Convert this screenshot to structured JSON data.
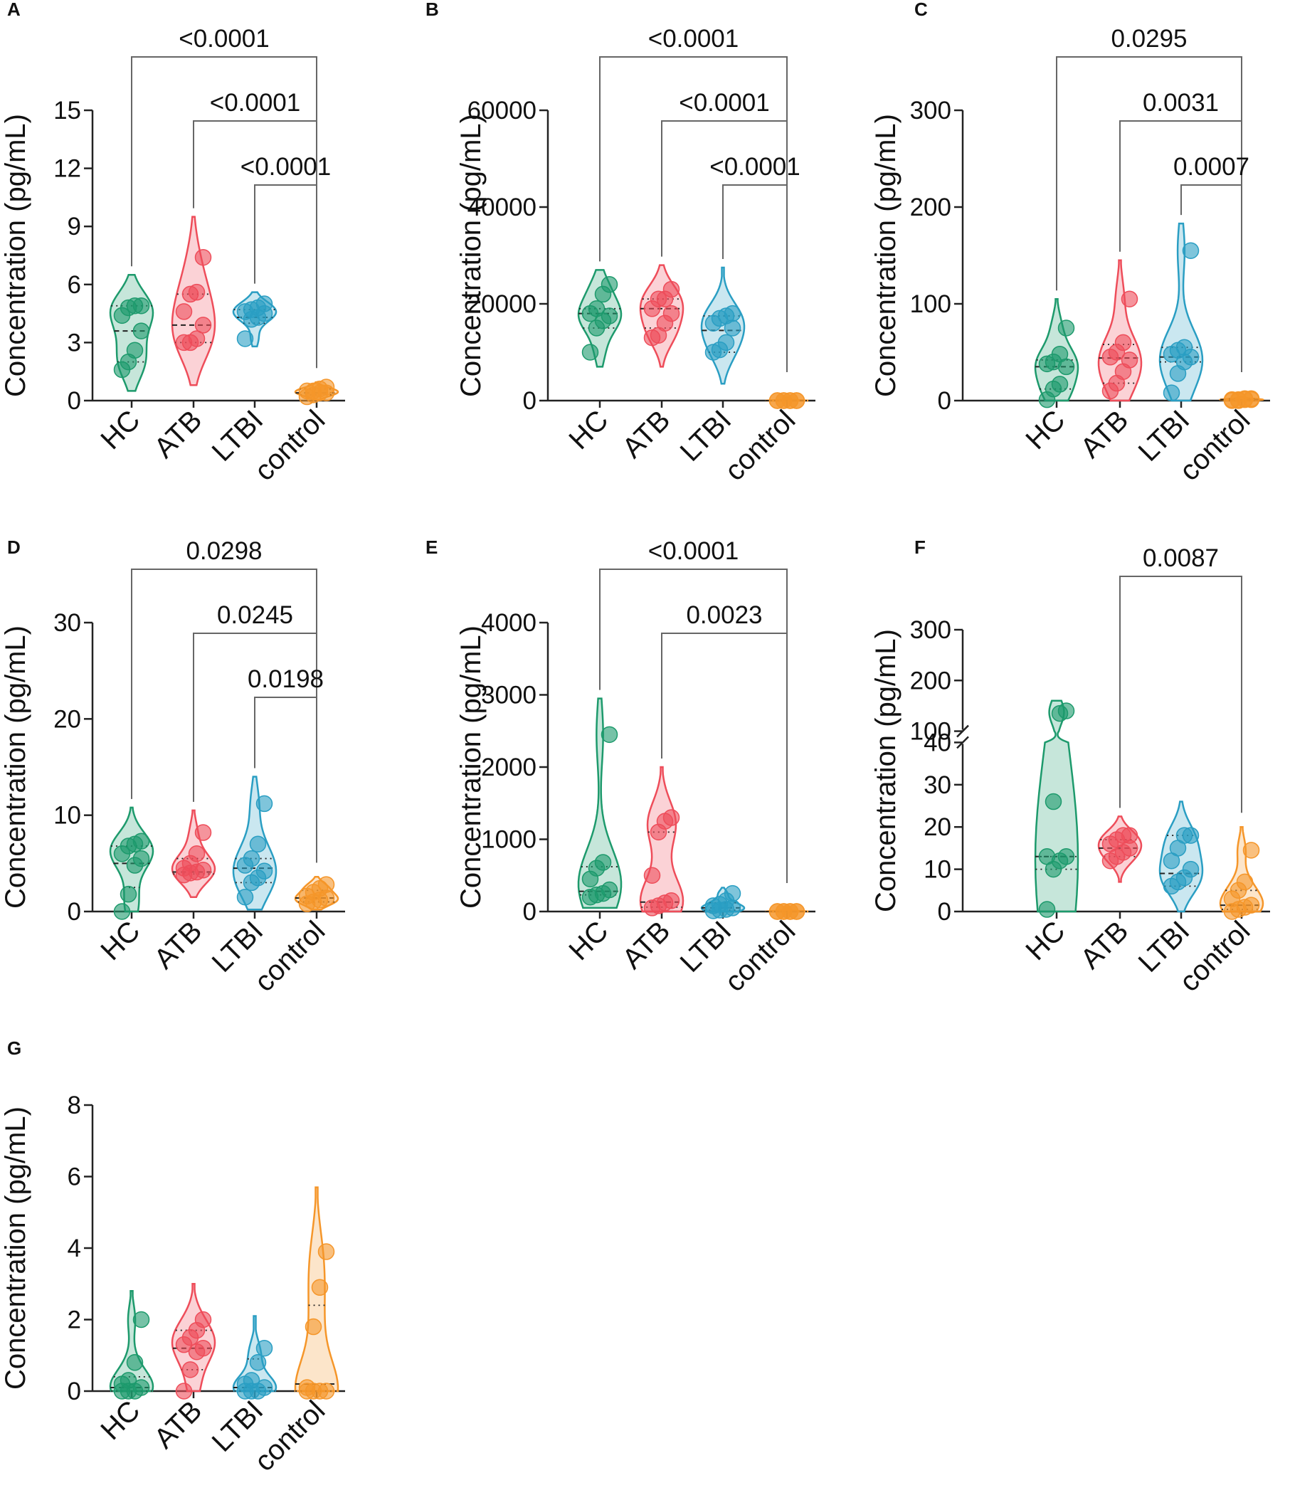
{
  "colors": {
    "HC": "#1d9a6c",
    "ATB": "#ee4d5a",
    "LTBI": "#2a9ec3",
    "control": "#f5962a"
  },
  "chart_data": [
    {
      "type": "violin",
      "panel": "A",
      "title": "",
      "ylabel": "Concentration (pg/mL)",
      "ylim": [
        0,
        15
      ],
      "yticks": [
        0,
        3,
        6,
        9,
        12,
        15
      ],
      "categories": [
        "HC",
        "ATB",
        "LTBI",
        "control"
      ],
      "series": [
        {
          "name": "HC",
          "values": [
            1.6,
            2.0,
            2.6,
            3.6,
            4.4,
            4.8,
            4.9,
            4.9
          ],
          "median": 3.6,
          "q1": 2.0,
          "q3": 4.9,
          "range": [
            0.5,
            6.5
          ]
        },
        {
          "name": "ATB",
          "values": [
            3.0,
            3.0,
            3.2,
            3.9,
            4.6,
            5.5,
            5.6,
            7.4
          ],
          "median": 3.9,
          "q1": 3.0,
          "q3": 5.5,
          "range": [
            0.8,
            9.5
          ]
        },
        {
          "name": "LTBI",
          "values": [
            3.2,
            4.2,
            4.3,
            4.5,
            4.6,
            4.7,
            4.8,
            5.0
          ],
          "median": 4.3,
          "q1": 4.0,
          "q3": 4.7,
          "range": [
            2.8,
            5.6
          ]
        },
        {
          "name": "control",
          "values": [
            0.2,
            0.3,
            0.4,
            0.4,
            0.5,
            0.5,
            0.6,
            0.7
          ],
          "median": 0.4,
          "q1": 0.3,
          "q3": 0.6,
          "range": [
            0.05,
            0.95
          ]
        }
      ],
      "comparisons": [
        {
          "from": "HC",
          "to": "control",
          "label": "<0.0001"
        },
        {
          "from": "ATB",
          "to": "control",
          "label": "<0.0001"
        },
        {
          "from": "LTBI",
          "to": "control",
          "label": "<0.0001"
        }
      ]
    },
    {
      "type": "violin",
      "panel": "B",
      "title": "",
      "ylabel": "Concentration (pg/mL)",
      "ylim": [
        0,
        60000
      ],
      "yticks": [
        0,
        20000,
        40000,
        60000
      ],
      "categories": [
        "HC",
        "ATB",
        "LTBI",
        "control"
      ],
      "series": [
        {
          "name": "HC",
          "values": [
            10000,
            15000,
            16500,
            17500,
            18000,
            19000,
            22000,
            24000
          ],
          "median": 18000,
          "q1": 15000,
          "q3": 19000,
          "range": [
            7000,
            27000
          ]
        },
        {
          "name": "ATB",
          "values": [
            13000,
            13500,
            16000,
            18000,
            19000,
            21000,
            21000,
            23000
          ],
          "median": 19000,
          "q1": 15000,
          "q3": 21000,
          "range": [
            7000,
            28000
          ]
        },
        {
          "name": "LTBI",
          "values": [
            10000,
            10500,
            12000,
            15000,
            16000,
            17000,
            17500,
            18000
          ],
          "median": 14500,
          "q1": 10000,
          "q3": 17500,
          "range": [
            3500,
            27500
          ]
        },
        {
          "name": "control",
          "values": [
            0,
            0,
            0,
            0,
            0,
            0,
            0,
            0
          ],
          "median": 0,
          "q1": 0,
          "q3": 0,
          "range": [
            0,
            700
          ]
        }
      ],
      "comparisons": [
        {
          "from": "HC",
          "to": "control",
          "label": "<0.0001"
        },
        {
          "from": "ATB",
          "to": "control",
          "label": "<0.0001"
        },
        {
          "from": "LTBI",
          "to": "control",
          "label": "<0.0001"
        }
      ]
    },
    {
      "type": "violin",
      "panel": "C",
      "title": "",
      "ylabel": "Concentration (pg/mL)",
      "ylim": [
        0,
        300
      ],
      "yticks": [
        0,
        100,
        200,
        300
      ],
      "categories": [
        "HC",
        "ATB",
        "LTBI",
        "control"
      ],
      "series": [
        {
          "name": "HC",
          "values": [
            1,
            12,
            17,
            35,
            38,
            40,
            48,
            75
          ],
          "median": 35,
          "q1": 12,
          "q3": 42,
          "range": [
            0,
            105
          ]
        },
        {
          "name": "ATB",
          "values": [
            10,
            18,
            30,
            42,
            45,
            50,
            60,
            105
          ],
          "median": 44,
          "q1": 18,
          "q3": 58,
          "range": [
            0,
            145
          ]
        },
        {
          "name": "LTBI",
          "values": [
            8,
            28,
            40,
            45,
            48,
            52,
            55,
            155
          ],
          "median": 45,
          "q1": 40,
          "q3": 55,
          "range": [
            0,
            183
          ]
        },
        {
          "name": "control",
          "values": [
            0,
            0,
            1,
            1,
            1,
            1,
            2,
            2
          ],
          "median": 1,
          "q1": 0,
          "q3": 2,
          "range": [
            0,
            4
          ]
        }
      ],
      "comparisons": [
        {
          "from": "HC",
          "to": "control",
          "label": "0.0295"
        },
        {
          "from": "ATB",
          "to": "control",
          "label": "0.0031"
        },
        {
          "from": "LTBI",
          "to": "control",
          "label": "0.0007"
        }
      ]
    },
    {
      "type": "violin",
      "panel": "D",
      "title": "",
      "ylabel": "Concentration (pg/mL)",
      "ylim": [
        0,
        30
      ],
      "yticks": [
        0,
        10,
        20,
        30
      ],
      "categories": [
        "HC",
        "ATB",
        "LTBI",
        "control"
      ],
      "series": [
        {
          "name": "HC",
          "values": [
            0,
            1.8,
            4.8,
            5.5,
            6.0,
            6.8,
            7.0,
            7.3
          ],
          "median": 5.0,
          "q1": 2.5,
          "q3": 6.8,
          "range": [
            0,
            10.8
          ]
        },
        {
          "name": "ATB",
          "values": [
            3.8,
            4.0,
            4.1,
            4.3,
            4.5,
            5.0,
            6.0,
            8.2
          ],
          "median": 4.1,
          "q1": 3.9,
          "q3": 5.5,
          "range": [
            1.5,
            10.5
          ]
        },
        {
          "name": "LTBI",
          "values": [
            1.5,
            3.0,
            3.5,
            4.2,
            4.8,
            5.5,
            7.0,
            11.2
          ],
          "median": 4.5,
          "q1": 3.0,
          "q3": 5.5,
          "range": [
            0.2,
            14
          ]
        },
        {
          "name": "control",
          "values": [
            0.8,
            1.0,
            1.2,
            1.4,
            1.6,
            2.0,
            2.4,
            2.8
          ],
          "median": 1.4,
          "q1": 1.0,
          "q3": 2.2,
          "range": [
            0.2,
            3.6
          ]
        }
      ],
      "comparisons": [
        {
          "from": "HC",
          "to": "control",
          "label": "0.0298"
        },
        {
          "from": "ATB",
          "to": "control",
          "label": "0.0245"
        },
        {
          "from": "LTBI",
          "to": "control",
          "label": "0.0198"
        }
      ]
    },
    {
      "type": "violin",
      "panel": "E",
      "title": "",
      "ylabel": "Concentration (pg/mL)",
      "ylim": [
        0,
        4000
      ],
      "yticks": [
        0,
        1000,
        2000,
        3000,
        4000
      ],
      "categories": [
        "HC",
        "ATB",
        "LTBI",
        "control"
      ],
      "series": [
        {
          "name": "HC",
          "values": [
            200,
            230,
            250,
            300,
            450,
            600,
            680,
            2450
          ],
          "median": 280,
          "q1": 230,
          "q3": 620,
          "range": [
            50,
            2950
          ]
        },
        {
          "name": "ATB",
          "values": [
            50,
            80,
            120,
            150,
            500,
            1100,
            1250,
            1300
          ],
          "median": 130,
          "q1": 60,
          "q3": 1100,
          "range": [
            0,
            2000
          ]
        },
        {
          "name": "LTBI",
          "values": [
            10,
            20,
            30,
            50,
            80,
            100,
            150,
            250
          ],
          "median": 50,
          "q1": 20,
          "q3": 120,
          "range": [
            0,
            330
          ]
        },
        {
          "name": "control",
          "values": [
            0,
            0,
            0,
            0,
            0,
            0,
            0,
            0
          ],
          "median": 0,
          "q1": 0,
          "q3": 0,
          "range": [
            0,
            60
          ]
        }
      ],
      "comparisons": [
        {
          "from": "HC",
          "to": "control",
          "label": "<0.0001"
        },
        {
          "from": "ATB",
          "to": "control",
          "label": "0.0023"
        }
      ]
    },
    {
      "type": "violin",
      "panel": "F",
      "title": "",
      "ylabel": "Concentration (pg/mL)",
      "ylim": [
        0,
        300
      ],
      "yticks": [
        0,
        10,
        20,
        30,
        40,
        100,
        200,
        300
      ],
      "axis_break": [
        40,
        100
      ],
      "categories": [
        "HC",
        "ATB",
        "LTBI",
        "control"
      ],
      "series": [
        {
          "name": "HC",
          "values": [
            0.5,
            10,
            12,
            13,
            13,
            26,
            135,
            140
          ],
          "median": 13,
          "q1": 10,
          "q3": 13,
          "range": [
            0,
            160
          ]
        },
        {
          "name": "ATB",
          "values": [
            12,
            13,
            14,
            15,
            16,
            17,
            18,
            18
          ],
          "median": 15,
          "q1": 13,
          "q3": 17,
          "range": [
            7,
            22.5
          ]
        },
        {
          "name": "LTBI",
          "values": [
            6,
            7,
            8,
            10,
            12,
            15,
            18,
            18
          ],
          "median": 9,
          "q1": 6,
          "q3": 18,
          "range": [
            0,
            26
          ]
        },
        {
          "name": "control",
          "values": [
            0,
            0.5,
            1,
            1.5,
            3,
            5,
            7,
            14.5
          ],
          "median": 1.5,
          "q1": 0.5,
          "q3": 5,
          "range": [
            0,
            20
          ]
        }
      ],
      "comparisons": [
        {
          "from": "ATB",
          "to": "control",
          "label": "0.0087"
        }
      ]
    },
    {
      "type": "violin",
      "panel": "G",
      "title": "",
      "ylabel": "Concentration (pg/mL)",
      "ylim": [
        0,
        8
      ],
      "yticks": [
        0,
        2,
        4,
        6,
        8
      ],
      "categories": [
        "HC",
        "ATB",
        "LTBI",
        "control"
      ],
      "series": [
        {
          "name": "HC",
          "values": [
            0,
            0,
            0,
            0.1,
            0.2,
            0.3,
            0.8,
            2.0
          ],
          "median": 0.1,
          "q1": 0,
          "q3": 0.4,
          "range": [
            0,
            2.8
          ]
        },
        {
          "name": "ATB",
          "values": [
            0,
            0.6,
            1.1,
            1.2,
            1.3,
            1.5,
            1.7,
            2.0
          ],
          "median": 1.2,
          "q1": 0.6,
          "q3": 1.7,
          "range": [
            0,
            3.0
          ]
        },
        {
          "name": "LTBI",
          "values": [
            0,
            0,
            0,
            0.1,
            0.2,
            0.3,
            0.8,
            1.2
          ],
          "median": 0.1,
          "q1": 0,
          "q3": 0.9,
          "range": [
            0,
            2.1
          ]
        },
        {
          "name": "control",
          "values": [
            0,
            0,
            0,
            0,
            0.1,
            1.8,
            2.9,
            3.9
          ],
          "median": 0.2,
          "q1": 0,
          "q3": 2.4,
          "range": [
            0,
            5.7
          ]
        }
      ],
      "comparisons": []
    }
  ]
}
